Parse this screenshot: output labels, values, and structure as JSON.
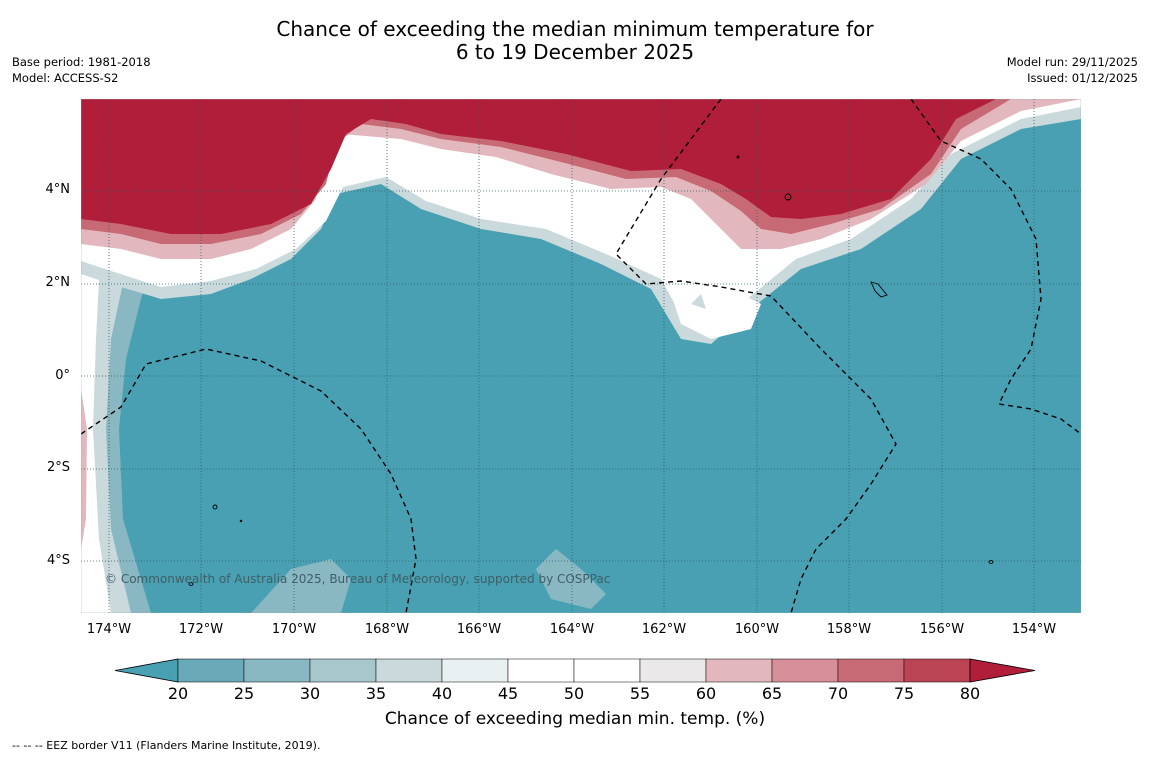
{
  "title_line1": "Chance of exceeding the median minimum temperature for",
  "title_line2": "6 to 19 December 2025",
  "meta_left": [
    "Base period: 1981-2018",
    "Model: ACCESS-S2"
  ],
  "meta_right": [
    "Model run: 29/11/2025",
    "Issued: 01/12/2025"
  ],
  "y_ticks": [
    "4°N",
    "2°N",
    "0°",
    "2°S",
    "4°S"
  ],
  "x_ticks": [
    "174°W",
    "172°W",
    "170°W",
    "168°W",
    "166°W",
    "164°W",
    "162°W",
    "160°W",
    "158°W",
    "156°W",
    "154°W"
  ],
  "copyright": "© Commonwealth of Australia 2025, Bureau of Meteorology, supported by COSPPac",
  "colorbar": {
    "ticks": [
      "20",
      "25",
      "30",
      "35",
      "40",
      "45",
      "50",
      "55",
      "60",
      "65",
      "70",
      "75",
      "80"
    ],
    "colors": [
      "#48a0b2",
      "#6aa9b8",
      "#89b8c3",
      "#a8c7cd",
      "#c9d9dc",
      "#e9f0f1",
      "#ffffff",
      "#ffffff",
      "#ebe8e9",
      "#e2b7bd",
      "#d68f98",
      "#c86a75",
      "#bb4454",
      "#b01e3a"
    ],
    "label": "Chance of exceeding median min. temp. (%)"
  },
  "footnote": "--  --  -- EEZ border V11 (Flanders Marine Institute, 2019).",
  "map_colors": {
    "ocean_below": "#48a0b2",
    "hot": "#b01e3a"
  }
}
